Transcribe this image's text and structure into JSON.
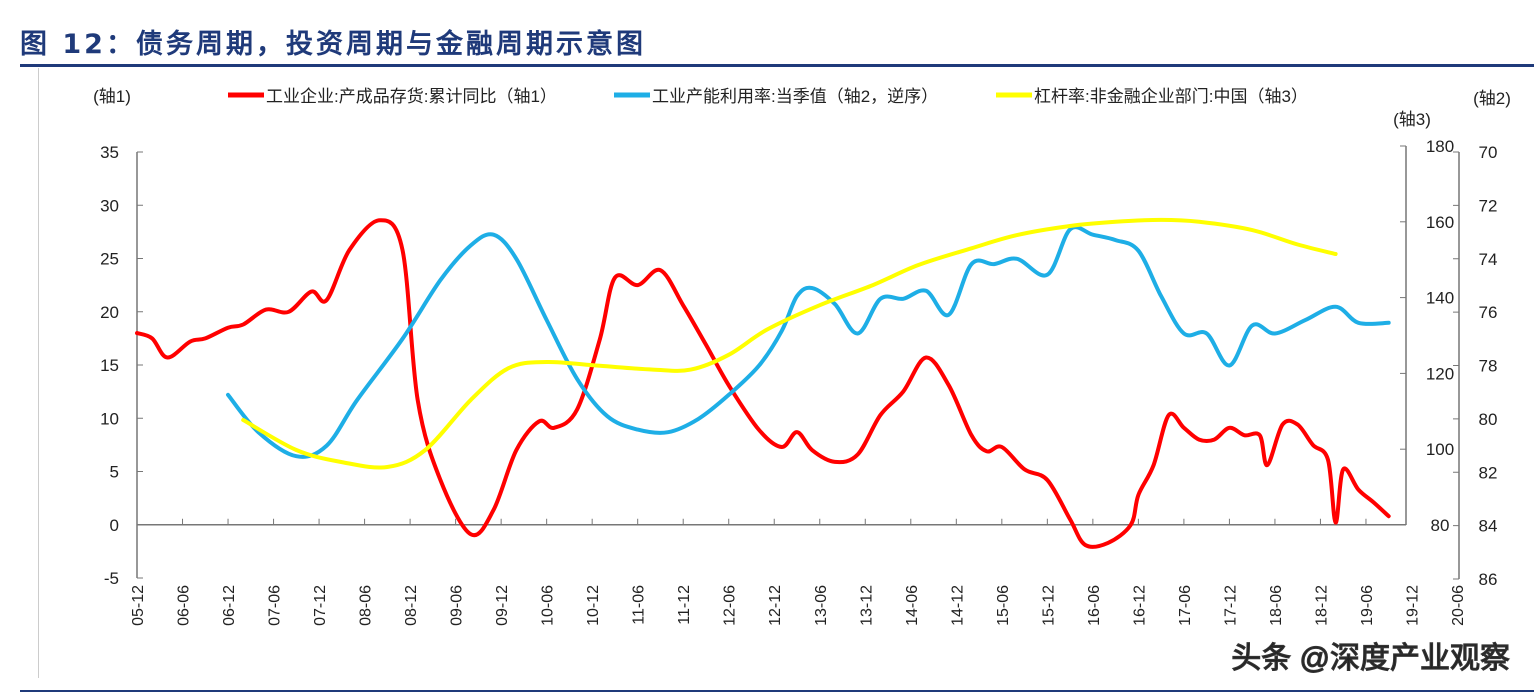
{
  "title": "图 12：债务周期，投资周期与金融周期示意图",
  "watermark": "头条 @深度产业观察",
  "chart_data": {
    "type": "line",
    "title": "图 12：债务周期，投资周期与金融周期示意图",
    "grid": false,
    "legend_placement": "top",
    "axes": {
      "axis1": {
        "label": "(轴1)",
        "side": "left",
        "range": [
          -5,
          35
        ],
        "ticks": [
          -5,
          0,
          5,
          10,
          15,
          20,
          25,
          30,
          35
        ]
      },
      "axis2": {
        "label": "(轴2)",
        "side": "right-outer",
        "range": [
          70,
          86
        ],
        "reversed": true,
        "ticks": [
          70,
          72,
          74,
          76,
          78,
          80,
          82,
          84,
          86
        ]
      },
      "axis3": {
        "label": "(轴3)",
        "side": "right-inner",
        "range": [
          80,
          180
        ],
        "ticks": [
          80,
          100,
          120,
          140,
          160,
          180
        ]
      }
    },
    "x_ticks": [
      "05-12",
      "06-06",
      "06-12",
      "07-06",
      "07-12",
      "08-06",
      "08-12",
      "09-06",
      "09-12",
      "10-06",
      "10-12",
      "11-06",
      "11-12",
      "12-06",
      "12-12",
      "13-06",
      "13-12",
      "14-06",
      "14-12",
      "15-06",
      "15-12",
      "16-06",
      "16-12",
      "17-06",
      "17-12",
      "18-06",
      "18-12",
      "19-06",
      "19-12",
      "20-06"
    ],
    "x_range": [
      "2005-12",
      "2020-06"
    ],
    "series": [
      {
        "name": "工业企业:产成品存货:累计同比（轴1）",
        "axis": "axis1",
        "color": "#ff0000",
        "points": [
          [
            "2005-12",
            18.0
          ],
          [
            "2006-02",
            17.5
          ],
          [
            "2006-04",
            15.7
          ],
          [
            "2006-07",
            17.2
          ],
          [
            "2006-09",
            17.5
          ],
          [
            "2006-12",
            18.5
          ],
          [
            "2007-02",
            18.8
          ],
          [
            "2007-05",
            20.2
          ],
          [
            "2007-08",
            20.0
          ],
          [
            "2007-11",
            21.9
          ],
          [
            "2008-01",
            21.1
          ],
          [
            "2008-04",
            25.8
          ],
          [
            "2008-08",
            28.6
          ],
          [
            "2008-11",
            25.8
          ],
          [
            "2009-01",
            11.7
          ],
          [
            "2009-04",
            4.2
          ],
          [
            "2009-08",
            -0.9
          ],
          [
            "2009-11",
            1.4
          ],
          [
            "2010-02",
            7.0
          ],
          [
            "2010-05",
            9.7
          ],
          [
            "2010-07",
            9.1
          ],
          [
            "2010-10",
            10.8
          ],
          [
            "2011-01",
            17.4
          ],
          [
            "2011-03",
            23.2
          ],
          [
            "2011-06",
            22.5
          ],
          [
            "2011-09",
            23.9
          ],
          [
            "2011-12",
            20.6
          ],
          [
            "2012-03",
            16.9
          ],
          [
            "2012-06",
            13.1
          ],
          [
            "2012-10",
            8.9
          ],
          [
            "2013-01",
            7.3
          ],
          [
            "2013-03",
            8.7
          ],
          [
            "2013-05",
            7.0
          ],
          [
            "2013-08",
            5.9
          ],
          [
            "2013-11",
            6.6
          ],
          [
            "2014-02",
            10.3
          ],
          [
            "2014-05",
            12.5
          ],
          [
            "2014-08",
            15.7
          ],
          [
            "2014-11",
            13.1
          ],
          [
            "2015-02",
            8.4
          ],
          [
            "2015-04",
            6.9
          ],
          [
            "2015-06",
            7.3
          ],
          [
            "2015-09",
            5.2
          ],
          [
            "2015-12",
            4.2
          ],
          [
            "2016-03",
            0.5
          ],
          [
            "2016-05",
            -1.9
          ],
          [
            "2016-08",
            -1.7
          ],
          [
            "2016-11",
            0.0
          ],
          [
            "2016-12",
            2.8
          ],
          [
            "2017-02",
            5.6
          ],
          [
            "2017-04",
            10.3
          ],
          [
            "2017-06",
            9.1
          ],
          [
            "2017-08",
            8.0
          ],
          [
            "2017-10",
            8.0
          ],
          [
            "2017-12",
            9.1
          ],
          [
            "2018-02",
            8.4
          ],
          [
            "2018-04",
            8.4
          ],
          [
            "2018-05",
            5.6
          ],
          [
            "2018-07",
            9.4
          ],
          [
            "2018-09",
            9.4
          ],
          [
            "2018-11",
            7.5
          ],
          [
            "2019-01",
            6.1
          ],
          [
            "2019-02",
            0.2
          ],
          [
            "2019-03",
            5.2
          ],
          [
            "2019-05",
            3.3
          ],
          [
            "2019-07",
            2.1
          ],
          [
            "2019-09",
            0.8
          ]
        ]
      },
      {
        "name": "工业产能利用率:当季值（轴2，逆序）",
        "axis": "axis2",
        "color": "#1eaee6",
        "points": [
          [
            "2006-12",
            79.1
          ],
          [
            "2007-04",
            80.5
          ],
          [
            "2007-09",
            81.4
          ],
          [
            "2008-01",
            81.0
          ],
          [
            "2008-05",
            79.3
          ],
          [
            "2008-11",
            77.0
          ],
          [
            "2009-04",
            74.8
          ],
          [
            "2009-08",
            73.5
          ],
          [
            "2009-11",
            73.1
          ],
          [
            "2010-02",
            74.0
          ],
          [
            "2010-06",
            76.3
          ],
          [
            "2010-10",
            78.5
          ],
          [
            "2011-02",
            79.9
          ],
          [
            "2011-06",
            80.4
          ],
          [
            "2011-10",
            80.5
          ],
          [
            "2012-02",
            80.0
          ],
          [
            "2012-06",
            79.1
          ],
          [
            "2012-10",
            78.0
          ],
          [
            "2013-01",
            76.7
          ],
          [
            "2013-03",
            75.4
          ],
          [
            "2013-05",
            75.1
          ],
          [
            "2013-08",
            75.7
          ],
          [
            "2013-11",
            76.8
          ],
          [
            "2014-02",
            75.5
          ],
          [
            "2014-05",
            75.5
          ],
          [
            "2014-08",
            75.2
          ],
          [
            "2014-11",
            76.1
          ],
          [
            "2015-02",
            74.2
          ],
          [
            "2015-05",
            74.2
          ],
          [
            "2015-08",
            74.0
          ],
          [
            "2015-12",
            74.6
          ],
          [
            "2016-03",
            72.9
          ],
          [
            "2016-06",
            73.1
          ],
          [
            "2016-09",
            73.3
          ],
          [
            "2016-12",
            73.7
          ],
          [
            "2017-03",
            75.4
          ],
          [
            "2017-06",
            76.8
          ],
          [
            "2017-09",
            76.8
          ],
          [
            "2017-12",
            78.0
          ],
          [
            "2018-03",
            76.5
          ],
          [
            "2018-06",
            76.8
          ],
          [
            "2018-10",
            76.3
          ],
          [
            "2019-02",
            75.8
          ],
          [
            "2019-05",
            76.4
          ],
          [
            "2019-09",
            76.4
          ]
        ]
      },
      {
        "name": "杠杆率:非金融企业部门:中国（轴3）",
        "axis": "axis3",
        "color": "#ffff00",
        "points": [
          [
            "2007-02",
            107.7
          ],
          [
            "2007-09",
            99.8
          ],
          [
            "2008-03",
            96.6
          ],
          [
            "2008-09",
            95.3
          ],
          [
            "2009-02",
            99.8
          ],
          [
            "2009-08",
            113.0
          ],
          [
            "2010-01",
            121.4
          ],
          [
            "2010-06",
            123.0
          ],
          [
            "2011-01",
            122.0
          ],
          [
            "2011-08",
            121.0
          ],
          [
            "2012-01",
            121.0
          ],
          [
            "2012-06",
            124.9
          ],
          [
            "2012-11",
            131.5
          ],
          [
            "2013-06",
            138.0
          ],
          [
            "2014-01",
            143.3
          ],
          [
            "2014-07",
            148.6
          ],
          [
            "2015-02",
            153.0
          ],
          [
            "2015-08",
            156.5
          ],
          [
            "2016-03",
            158.9
          ],
          [
            "2016-09",
            160.0
          ],
          [
            "2017-03",
            160.5
          ],
          [
            "2017-08",
            160.0
          ],
          [
            "2018-03",
            157.8
          ],
          [
            "2018-09",
            154.0
          ],
          [
            "2019-02",
            151.5
          ]
        ]
      }
    ]
  }
}
